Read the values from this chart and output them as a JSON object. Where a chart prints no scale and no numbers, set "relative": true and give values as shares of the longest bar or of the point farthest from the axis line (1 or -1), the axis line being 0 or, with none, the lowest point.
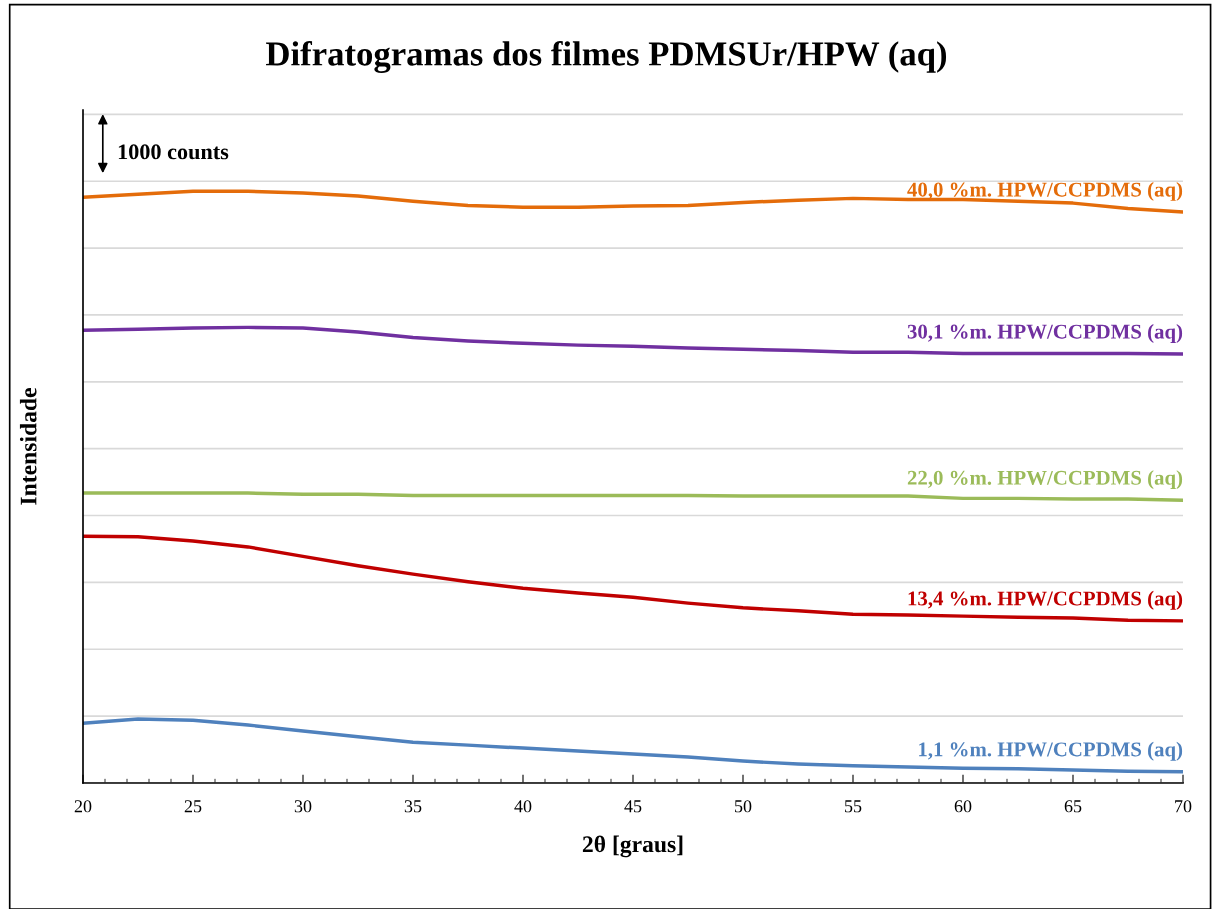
{
  "chart_data": {
    "type": "line",
    "title": "Difratogramas dos filmes PDMSUr/HPW (aq)",
    "xlabel": "2θ [graus]",
    "ylabel": "Intensidade",
    "relative": true,
    "legend": false,
    "grid": "y",
    "marker": "none",
    "line_style": "solid",
    "xlim": [
      20,
      70
    ],
    "xticks": [
      20,
      25,
      30,
      35,
      40,
      45,
      50,
      55,
      60,
      65,
      70
    ],
    "tick_labels": "x",
    "annotations": [
      "1000 counts"
    ],
    "x": [
      20,
      22.5,
      25,
      27.5,
      30,
      32.5,
      35,
      37.5,
      40,
      42.5,
      45,
      47.5,
      50,
      52.5,
      55,
      57.5,
      60,
      62.5,
      65,
      67.5,
      70
    ],
    "series": [
      {
        "name": "40,0 %m. HPW/CCPDMS (aq)",
        "color": "#e46c0a",
        "values": [
          0.99,
          0.995,
          1,
          1,
          0.997,
          0.992,
          0.983,
          0.976,
          0.973,
          0.973,
          0.975,
          0.976,
          0.981,
          0.985,
          0.988,
          0.986,
          0.986,
          0.983,
          0.98,
          0.971,
          0.965
        ]
      },
      {
        "name": "30,1 %m. HPW/CCPDMS (aq)",
        "color": "#7030a0",
        "values": [
          0.765,
          0.767,
          0.769,
          0.77,
          0.769,
          0.762,
          0.753,
          0.747,
          0.743,
          0.74,
          0.738,
          0.735,
          0.733,
          0.731,
          0.728,
          0.728,
          0.726,
          0.726,
          0.726,
          0.726,
          0.725
        ]
      },
      {
        "name": "22,0 %m. HPW/CCPDMS (aq)",
        "color": "#9bbb59",
        "values": [
          0.49,
          0.49,
          0.49,
          0.49,
          0.488,
          0.488,
          0.486,
          0.486,
          0.486,
          0.486,
          0.486,
          0.486,
          0.485,
          0.485,
          0.485,
          0.485,
          0.481,
          0.481,
          0.48,
          0.48,
          0.478
        ]
      },
      {
        "name": "13,4 %m. HPW/CCPDMS (aq)",
        "color": "#c00000",
        "values": [
          0.417,
          0.416,
          0.409,
          0.399,
          0.383,
          0.367,
          0.353,
          0.34,
          0.329,
          0.321,
          0.314,
          0.304,
          0.296,
          0.291,
          0.285,
          0.284,
          0.282,
          0.28,
          0.279,
          0.275,
          0.274
        ]
      },
      {
        "name": "1,1 %m. HPW/CCPDMS (aq)",
        "color": "#4f81bd",
        "values": [
          0.101,
          0.108,
          0.106,
          0.098,
          0.088,
          0.078,
          0.069,
          0.064,
          0.059,
          0.054,
          0.049,
          0.044,
          0.037,
          0.032,
          0.029,
          0.027,
          0.025,
          0.024,
          0.022,
          0.02,
          0.019
        ]
      }
    ]
  }
}
